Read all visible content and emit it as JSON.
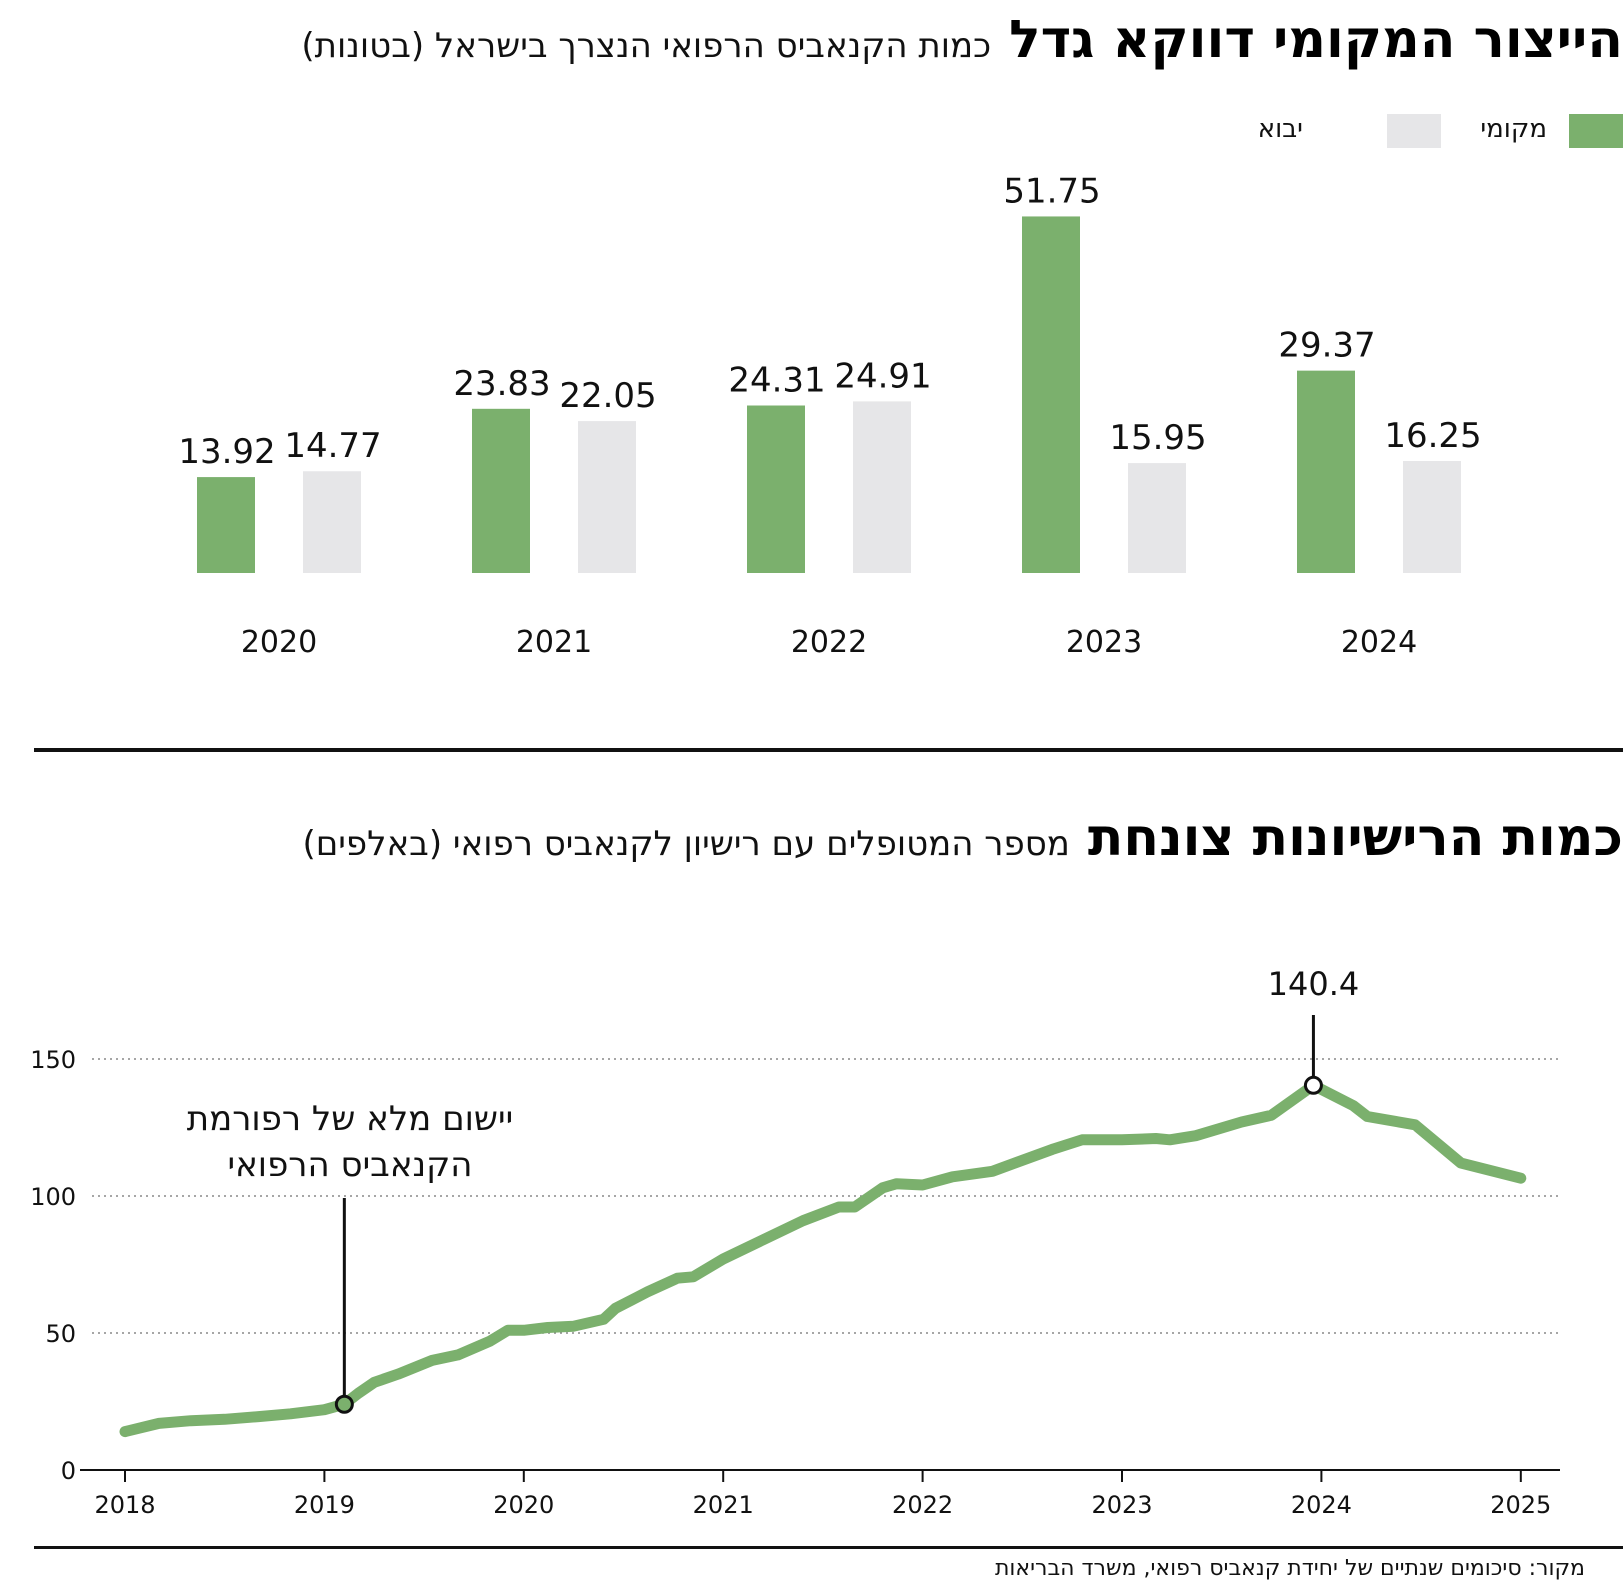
{
  "bar_section": {
    "title": "הייצור המקומי דווקא גדל",
    "subtitle": "כמות הקנאביס הרפואי הנצרך בישראל (בטונות)"
  },
  "line_section": {
    "title": "כמות הרישיונות צונחת",
    "subtitle": "מספר המטופלים עם רישיון לקנאביס רפואי (באלפים)",
    "annotation": [
      "יישום מלא של רפורמת",
      "הקנאביס הרפואי"
    ],
    "peak_label": "140.4"
  },
  "source": "מקור: סיכומים שנתיים של יחידת קנאביס רפואי, משרד הבריאות",
  "colors": {
    "local": "#7bb06d",
    "import": "#e6e6e8",
    "line": "#7bb06d"
  },
  "chart_data": [
    {
      "type": "bar",
      "categories": [
        "2020",
        "2021",
        "2022",
        "2023",
        "2024"
      ],
      "series": [
        {
          "name": "מקומי",
          "values": [
            13.92,
            23.83,
            24.31,
            51.75,
            29.37
          ]
        },
        {
          "name": "יבוא",
          "values": [
            14.77,
            22.05,
            24.91,
            15.95,
            16.25
          ]
        }
      ],
      "ylim": [
        0,
        55
      ],
      "legend": "top-right"
    },
    {
      "type": "line",
      "x": [
        2018.0,
        2018.17,
        2018.33,
        2018.5,
        2018.67,
        2018.83,
        2019.0,
        2019.1,
        2019.17,
        2019.25,
        2019.37,
        2019.54,
        2019.67,
        2019.83,
        2019.92,
        2020.0,
        2020.12,
        2020.25,
        2020.4,
        2020.46,
        2020.62,
        2020.77,
        2020.85,
        2021.0,
        2021.2,
        2021.4,
        2021.58,
        2021.66,
        2021.8,
        2021.87,
        2022.0,
        2022.15,
        2022.35,
        2022.65,
        2022.8,
        2023.0,
        2023.17,
        2023.24,
        2023.37,
        2023.6,
        2023.75,
        2023.96,
        2024.16,
        2024.23,
        2024.47,
        2024.7,
        2025.0
      ],
      "y": [
        14,
        17,
        18,
        18.5,
        19.5,
        20.5,
        22,
        24,
        28,
        32,
        35,
        40,
        42,
        47,
        51,
        51,
        52,
        52.5,
        55,
        59,
        65,
        70,
        70.5,
        77,
        84,
        91,
        96,
        96,
        103,
        104.5,
        104,
        107,
        109,
        117,
        120.5,
        120.5,
        121,
        120.5,
        122,
        127,
        129.5,
        140.4,
        133,
        129,
        126,
        112,
        106.5
      ],
      "xlim": [
        2017.95,
        2025.2
      ],
      "ylim": [
        0,
        150
      ],
      "yticks": [
        0,
        50,
        100,
        150
      ],
      "xticks": [
        2018,
        2019,
        2020,
        2021,
        2022,
        2023,
        2024,
        2025
      ],
      "grid": true
    }
  ]
}
